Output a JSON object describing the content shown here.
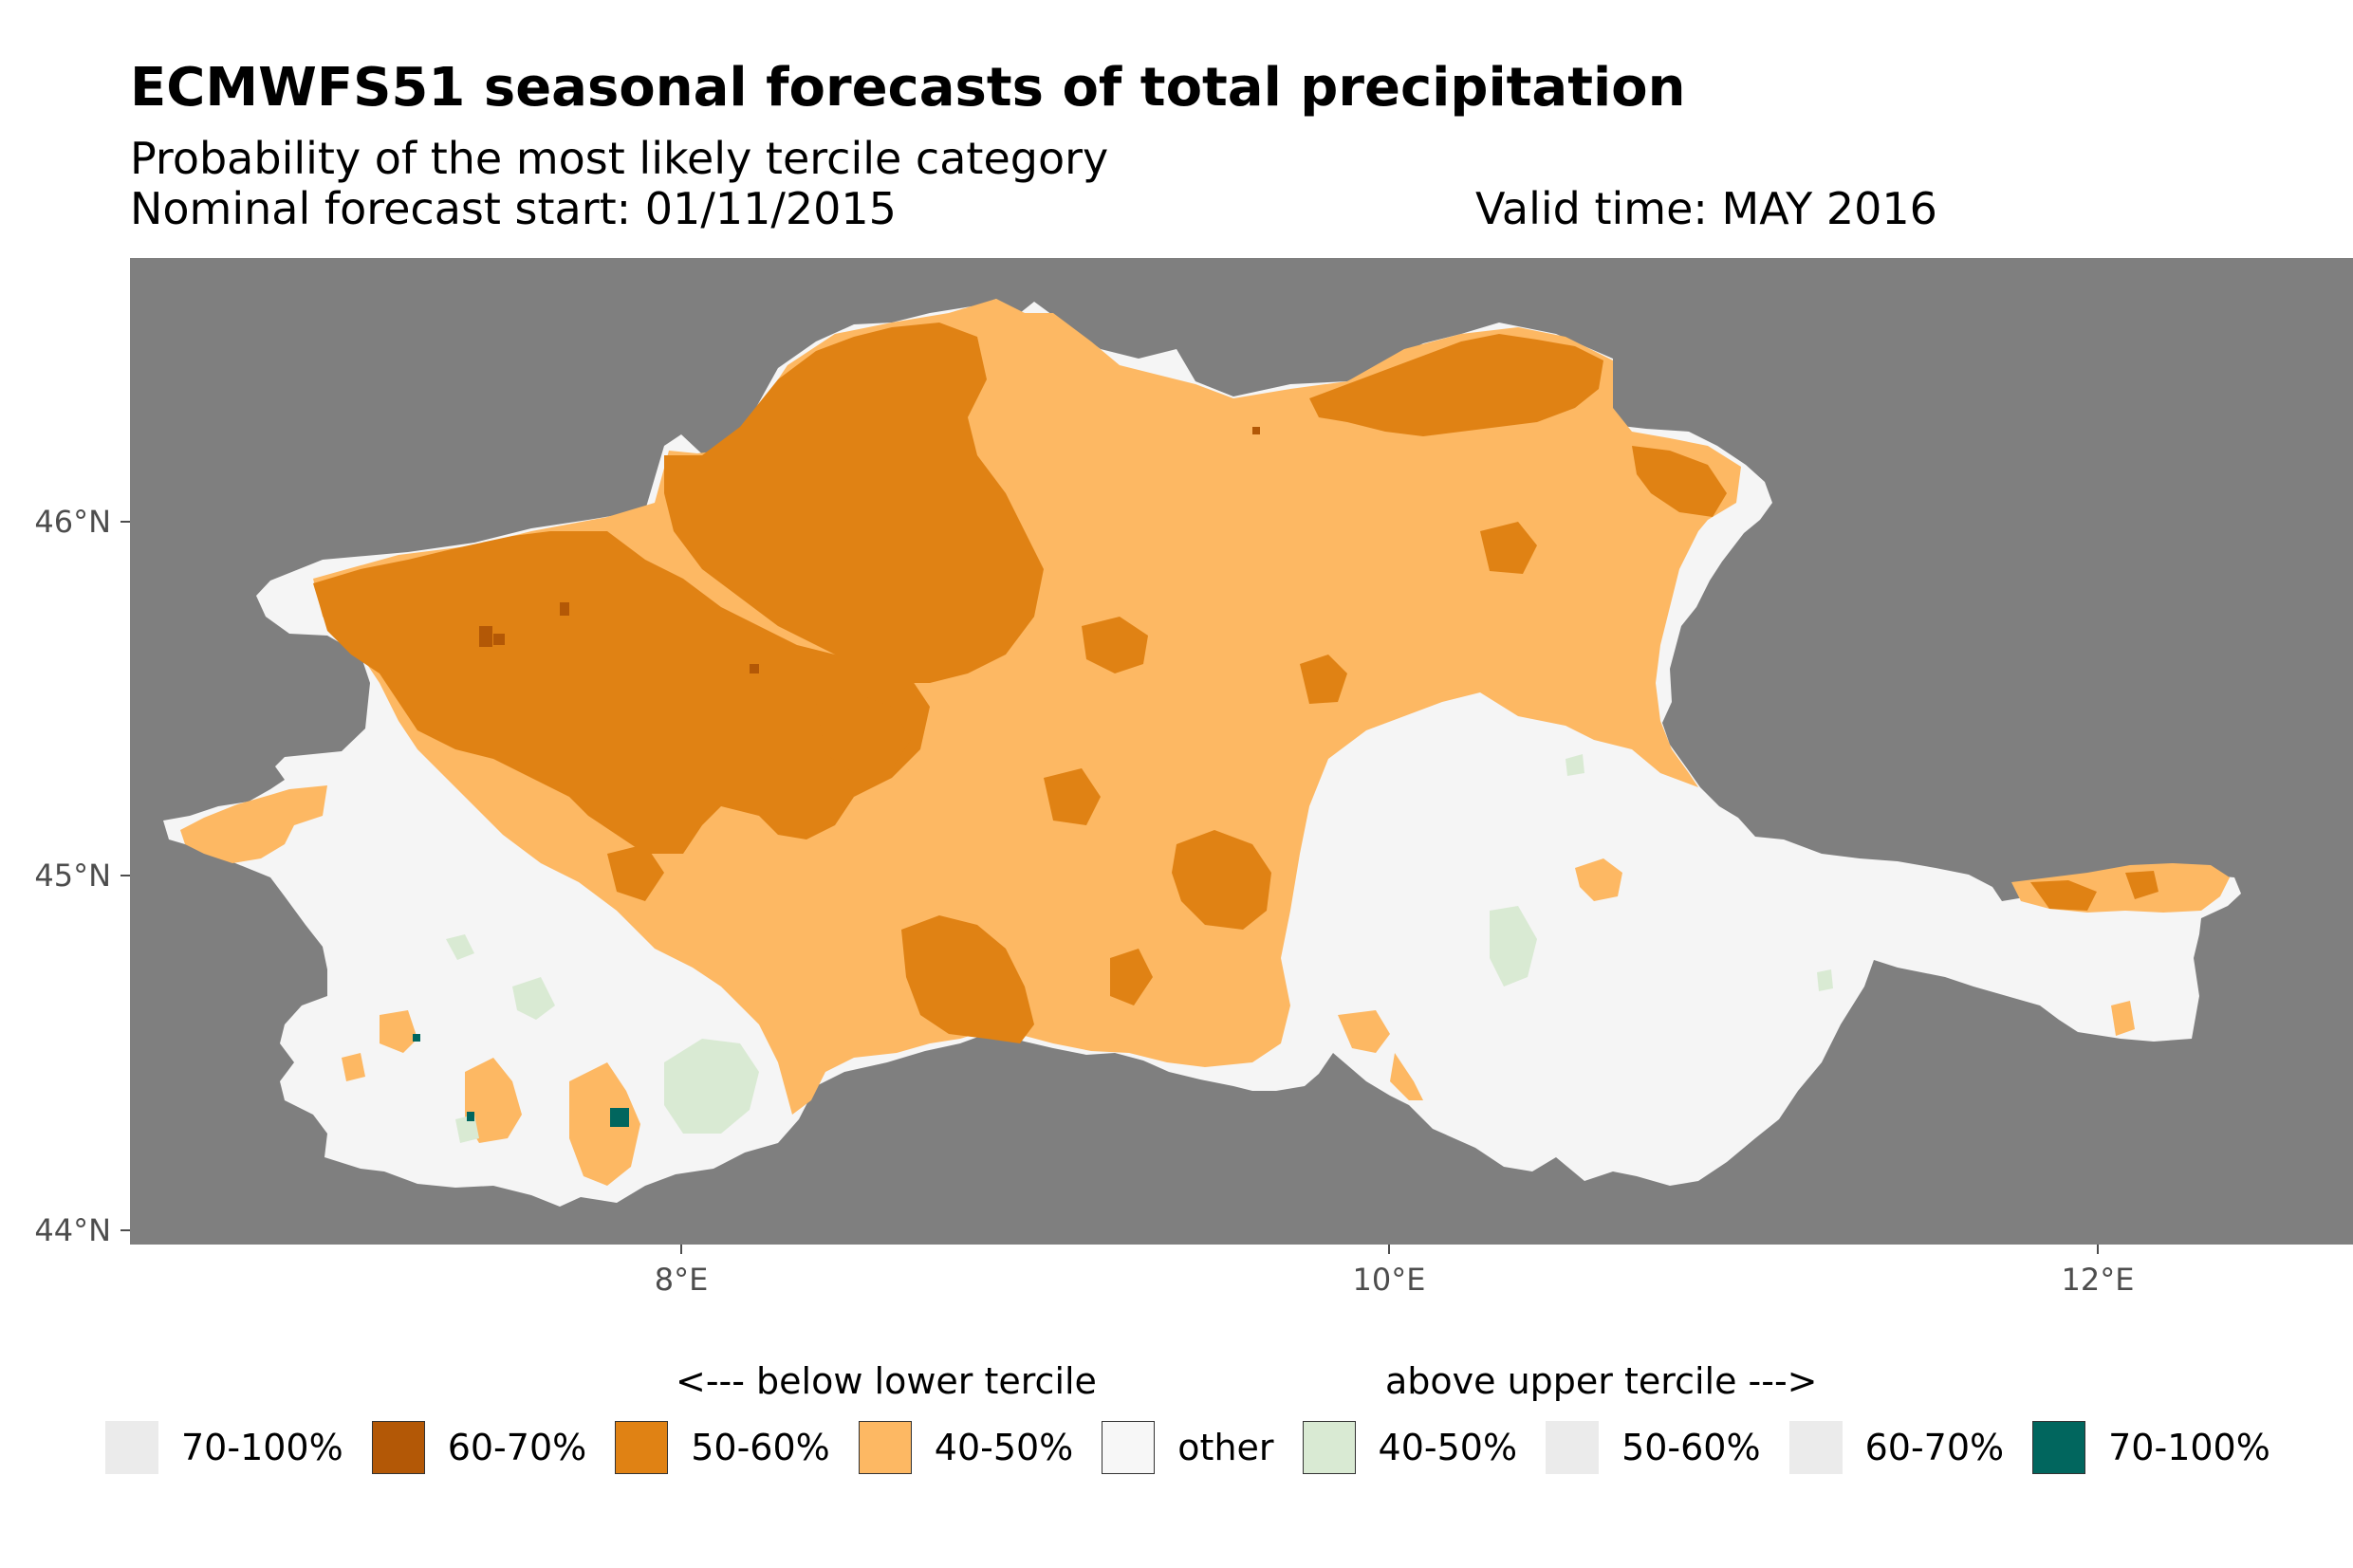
{
  "header": {
    "title": "ECMWFS51 seasonal forecasts of total precipitation",
    "subtitle": "Probability of the most likely tercile category",
    "forecast_start": "Nominal forecast start: 01/11/2015",
    "valid_time": "Valid time: MAY 2016"
  },
  "map": {
    "background_color": "#7f7f7f",
    "y_ticks": [
      "44°N",
      "45°N",
      "46°N"
    ],
    "x_ticks": [
      "8°E",
      "10°E",
      "12°E"
    ],
    "regions": [
      {
        "name": "other",
        "color": "#f5f5f5"
      },
      {
        "name": "below-40-50",
        "color": "#fdb863"
      },
      {
        "name": "below-50-60",
        "color": "#e08214"
      },
      {
        "name": "below-60-70",
        "color": "#b35806"
      },
      {
        "name": "above-40-50",
        "color": "#d9ead3"
      },
      {
        "name": "above-70-100",
        "color": "#01665e"
      }
    ]
  },
  "legend": {
    "below_heading": "<--- below lower tercile",
    "above_heading": "above upper tercile --->",
    "items": [
      {
        "label": "70-100%",
        "color": "#ebebeb"
      },
      {
        "label": "60-70%",
        "color": "#b35806"
      },
      {
        "label": "50-60%",
        "color": "#e08214"
      },
      {
        "label": "40-50%",
        "color": "#fdb863"
      },
      {
        "label": "other",
        "color": "#f7f7f7"
      },
      {
        "label": "40-50%",
        "color": "#d9ead3"
      },
      {
        "label": "50-60%",
        "color": "#ebebeb"
      },
      {
        "label": "60-70%",
        "color": "#ebebeb"
      },
      {
        "label": "70-100%",
        "color": "#01665e"
      }
    ]
  }
}
